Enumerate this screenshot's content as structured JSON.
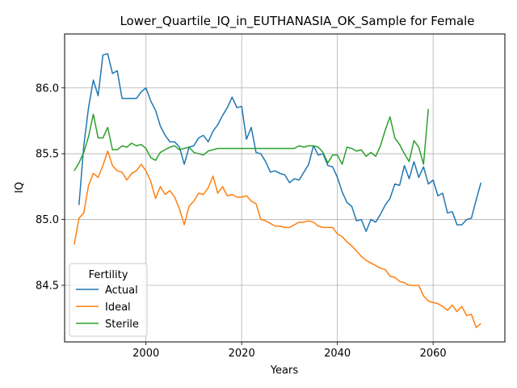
{
  "chart_data": {
    "type": "line",
    "title": "Lower_Quartile_IQ_in_EUTHANASIA_OK_Sample for Female",
    "xlabel": "Years",
    "ylabel": "IQ",
    "xlim": [
      1983,
      2075
    ],
    "ylim": [
      84.07,
      86.41
    ],
    "xticks": [
      2000,
      2020,
      2040,
      2060
    ],
    "yticks": [
      84.5,
      85.0,
      85.5,
      86.0
    ],
    "ytick_labels": [
      "84.5",
      "85.0",
      "85.5",
      "86.0"
    ],
    "grid": true,
    "legend": {
      "title": "Fertility",
      "position": "lower-left"
    },
    "series": [
      {
        "name": "Actual",
        "color": "#1f77b4",
        "x": [
          1986,
          1987,
          1988,
          1989,
          1990,
          1991,
          1992,
          1993,
          1994,
          1995,
          1996,
          1997,
          1998,
          1999,
          2000,
          2001,
          2002,
          2003,
          2004,
          2005,
          2006,
          2007,
          2008,
          2009,
          2010,
          2011,
          2012,
          2013,
          2014,
          2015,
          2016,
          2017,
          2018,
          2019,
          2020,
          2021,
          2022,
          2023,
          2024,
          2025,
          2026,
          2027,
          2028,
          2029,
          2030,
          2031,
          2032,
          2033,
          2034,
          2035,
          2036,
          2037,
          2038,
          2039,
          2040,
          2041,
          2042,
          2043,
          2044,
          2045,
          2046,
          2047,
          2048,
          2049,
          2050,
          2051,
          2052,
          2053,
          2054,
          2055,
          2056,
          2057,
          2058,
          2059,
          2060,
          2061,
          2062,
          2063,
          2064,
          2065,
          2066,
          2067,
          2068,
          2069,
          2070
        ],
        "values": [
          85.11,
          85.56,
          85.85,
          86.06,
          85.94,
          86.25,
          86.26,
          86.11,
          86.13,
          85.92,
          85.92,
          85.92,
          85.92,
          85.97,
          86.0,
          85.9,
          85.83,
          85.71,
          85.64,
          85.59,
          85.59,
          85.55,
          85.42,
          85.55,
          85.56,
          85.62,
          85.64,
          85.59,
          85.67,
          85.72,
          85.79,
          85.85,
          85.93,
          85.85,
          85.86,
          85.61,
          85.7,
          85.51,
          85.5,
          85.44,
          85.36,
          85.37,
          85.35,
          85.34,
          85.28,
          85.31,
          85.3,
          85.36,
          85.42,
          85.56,
          85.49,
          85.5,
          85.41,
          85.4,
          85.32,
          85.21,
          85.13,
          85.1,
          84.99,
          85.0,
          84.91,
          85.0,
          84.98,
          85.04,
          85.11,
          85.16,
          85.27,
          85.26,
          85.41,
          85.31,
          85.44,
          85.32,
          85.4,
          85.27,
          85.3,
          85.18,
          85.2,
          85.05,
          85.06,
          84.96,
          84.96,
          85.0,
          85.01,
          85.15,
          85.28
        ]
      },
      {
        "name": "Ideal",
        "color": "#ff7f0e",
        "x": [
          1985,
          1986,
          1987,
          1988,
          1989,
          1990,
          1991,
          1992,
          1993,
          1994,
          1995,
          1996,
          1997,
          1998,
          1999,
          2000,
          2001,
          2002,
          2003,
          2004,
          2005,
          2006,
          2007,
          2008,
          2009,
          2010,
          2011,
          2012,
          2013,
          2014,
          2015,
          2016,
          2017,
          2018,
          2019,
          2020,
          2021,
          2022,
          2023,
          2024,
          2025,
          2026,
          2027,
          2028,
          2029,
          2030,
          2031,
          2032,
          2033,
          2034,
          2035,
          2036,
          2037,
          2038,
          2039,
          2040,
          2041,
          2042,
          2043,
          2044,
          2045,
          2046,
          2047,
          2048,
          2049,
          2050,
          2051,
          2052,
          2053,
          2054,
          2055,
          2056,
          2057,
          2058,
          2059,
          2060,
          2061,
          2062,
          2063,
          2064,
          2065,
          2066,
          2067,
          2068,
          2069,
          2070
        ],
        "values": [
          84.81,
          85.01,
          85.05,
          85.26,
          85.35,
          85.32,
          85.41,
          85.52,
          85.41,
          85.37,
          85.36,
          85.3,
          85.35,
          85.37,
          85.42,
          85.37,
          85.29,
          85.16,
          85.25,
          85.19,
          85.22,
          85.17,
          85.08,
          84.96,
          85.1,
          85.14,
          85.2,
          85.19,
          85.24,
          85.33,
          85.2,
          85.25,
          85.18,
          85.19,
          85.17,
          85.17,
          85.18,
          85.14,
          85.12,
          85.0,
          84.99,
          84.97,
          84.95,
          84.95,
          84.94,
          84.94,
          84.96,
          84.98,
          84.98,
          84.99,
          84.98,
          84.95,
          84.94,
          84.94,
          84.94,
          84.89,
          84.87,
          84.83,
          84.8,
          84.76,
          84.72,
          84.69,
          84.67,
          84.65,
          84.63,
          84.62,
          84.57,
          84.56,
          84.53,
          84.52,
          84.5,
          84.5,
          84.5,
          84.42,
          84.38,
          84.37,
          84.36,
          84.34,
          84.31,
          84.35,
          84.3,
          84.34,
          84.27,
          84.28,
          84.18,
          84.21
        ]
      },
      {
        "name": "Sterile",
        "color": "#2ca02c",
        "x": [
          1985,
          1986,
          1987,
          1988,
          1989,
          1990,
          1991,
          1992,
          1993,
          1994,
          1995,
          1996,
          1997,
          1998,
          1999,
          2000,
          2001,
          2002,
          2003,
          2004,
          2005,
          2006,
          2007,
          2008,
          2009,
          2010,
          2011,
          2012,
          2013,
          2014,
          2015,
          2016,
          2017,
          2018,
          2019,
          2020,
          2021,
          2022,
          2023,
          2024,
          2025,
          2026,
          2027,
          2028,
          2029,
          2030,
          2031,
          2032,
          2033,
          2034,
          2035,
          2036,
          2037,
          2038,
          2039,
          2040,
          2041,
          2042,
          2043,
          2044,
          2045,
          2046,
          2047,
          2048,
          2049,
          2050,
          2051,
          2052,
          2053,
          2054,
          2055,
          2056,
          2057,
          2058,
          2059
        ],
        "values": [
          85.37,
          85.43,
          85.51,
          85.63,
          85.8,
          85.62,
          85.62,
          85.7,
          85.53,
          85.53,
          85.56,
          85.55,
          85.58,
          85.56,
          85.57,
          85.54,
          85.47,
          85.45,
          85.51,
          85.53,
          85.55,
          85.56,
          85.53,
          85.54,
          85.55,
          85.51,
          85.5,
          85.49,
          85.52,
          85.53,
          85.54,
          85.54,
          85.54,
          85.54,
          85.54,
          85.54,
          85.54,
          85.54,
          85.54,
          85.54,
          85.54,
          85.54,
          85.54,
          85.54,
          85.54,
          85.54,
          85.54,
          85.56,
          85.55,
          85.56,
          85.56,
          85.55,
          85.51,
          85.43,
          85.49,
          85.49,
          85.42,
          85.55,
          85.54,
          85.52,
          85.53,
          85.48,
          85.51,
          85.48,
          85.56,
          85.68,
          85.78,
          85.62,
          85.57,
          85.5,
          85.44,
          85.6,
          85.55,
          85.42,
          85.84
        ]
      }
    ]
  }
}
